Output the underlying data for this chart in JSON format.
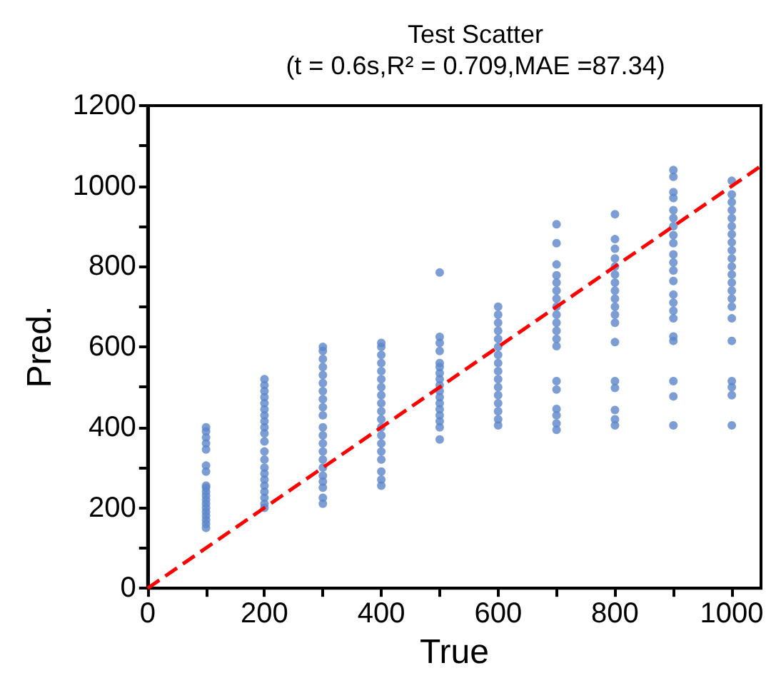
{
  "chart_data": {
    "type": "scatter",
    "title": "Test Scatter",
    "subtitle": "(t = 0.6s,R² = 0.709,MAE =87.34)",
    "xlabel": "True",
    "ylabel": "Pred.",
    "xlim": [
      0,
      1050
    ],
    "xticks": [
      0,
      {
        "value": 100,
        "label": null
      },
      200,
      {
        "value": 300,
        "label": null
      },
      400,
      {
        "value": 500,
        "label": null
      },
      600,
      {
        "value": 700,
        "label": null
      },
      800,
      {
        "value": 900,
        "label": null
      },
      1000
    ],
    "ylim": [
      0,
      1200
    ],
    "yticks": [
      0,
      {
        "value": 100,
        "label": null
      },
      200,
      {
        "value": 300,
        "label": null
      },
      400,
      {
        "value": 500,
        "label": null
      },
      600,
      {
        "value": 700,
        "label": null
      },
      800,
      {
        "value": 900,
        "label": null
      },
      1000,
      {
        "value": 1100,
        "label": null
      },
      1200
    ],
    "grid": false,
    "marker": "circle",
    "series": [
      {
        "color": "#5b86c9",
        "x": [
          100,
          100,
          100,
          100,
          100,
          100,
          100,
          100,
          100,
          100,
          100,
          100,
          100,
          100,
          100,
          100,
          100,
          100,
          100,
          200,
          200,
          200,
          200,
          200,
          200,
          200,
          200,
          200,
          200,
          200,
          200,
          200,
          200,
          200,
          200,
          200,
          200,
          200,
          200,
          200,
          300,
          300,
          300,
          300,
          300,
          300,
          300,
          300,
          300,
          300,
          300,
          300,
          300,
          300,
          300,
          300,
          300,
          300,
          300,
          300,
          300,
          400,
          400,
          400,
          400,
          400,
          400,
          400,
          400,
          400,
          400,
          400,
          400,
          400,
          400,
          400,
          400,
          400,
          400,
          400,
          500,
          500,
          500,
          500,
          500,
          500,
          500,
          500,
          500,
          500,
          500,
          500,
          500,
          500,
          500,
          500,
          500,
          600,
          600,
          600,
          600,
          600,
          600,
          600,
          600,
          600,
          600,
          600,
          600,
          600,
          600,
          600,
          600,
          700,
          700,
          700,
          700,
          700,
          700,
          700,
          700,
          700,
          700,
          700,
          700,
          700,
          700,
          700,
          700,
          700,
          700,
          700,
          800,
          800,
          800,
          800,
          800,
          800,
          800,
          800,
          800,
          800,
          800,
          800,
          800,
          800,
          800,
          800,
          800,
          800,
          900,
          900,
          900,
          900,
          900,
          900,
          900,
          900,
          900,
          900,
          900,
          900,
          900,
          900,
          900,
          900,
          900,
          900,
          900,
          900,
          900,
          900,
          1000,
          1000,
          1000,
          1000,
          1000,
          1000,
          1000,
          1000,
          1000,
          1000,
          1000,
          1000,
          1000,
          1000,
          1000,
          1000,
          1000,
          1000,
          1000,
          1000,
          1000,
          1000
        ],
        "values": [
          150,
          160,
          170,
          180,
          190,
          200,
          210,
          220,
          230,
          240,
          250,
          255,
          290,
          305,
          345,
          360,
          375,
          390,
          400,
          200,
          210,
          225,
          240,
          255,
          270,
          285,
          300,
          320,
          340,
          365,
          385,
          400,
          415,
          430,
          445,
          460,
          475,
          490,
          505,
          520,
          210,
          225,
          250,
          265,
          280,
          300,
          320,
          340,
          360,
          380,
          400,
          430,
          450,
          470,
          490,
          510,
          530,
          550,
          570,
          590,
          600,
          255,
          270,
          290,
          320,
          340,
          360,
          380,
          400,
          420,
          440,
          460,
          480,
          500,
          520,
          540,
          560,
          580,
          600,
          610,
          370,
          400,
          415,
          430,
          445,
          460,
          475,
          490,
          505,
          520,
          535,
          550,
          560,
          590,
          610,
          625,
          785,
          405,
          420,
          440,
          460,
          480,
          500,
          520,
          540,
          560,
          580,
          600,
          620,
          640,
          660,
          680,
          700,
          394,
          410,
          430,
          446,
          494,
          515,
          602,
          620,
          640,
          660,
          680,
          700,
          720,
          740,
          760,
          778,
          805,
          858,
          905,
          405,
          420,
          443,
          498,
          515,
          612,
          660,
          680,
          700,
          720,
          740,
          760,
          780,
          800,
          820,
          844,
          868,
          930,
          405,
          477,
          515,
          615,
          626,
          671,
          690,
          710,
          730,
          764,
          790,
          810,
          830,
          858,
          878,
          900,
          920,
          940,
          970,
          985,
          1023,
          1040,
          405,
          480,
          500,
          515,
          615,
          671,
          700,
          720,
          740,
          760,
          780,
          800,
          820,
          840,
          860,
          880,
          900,
          920,
          940,
          960,
          979,
          1013
        ]
      },
      {
        "type": "line",
        "color": "#ff0000",
        "line_style": "dashed",
        "marker": "none",
        "x": [
          0,
          1050
        ],
        "values": [
          0,
          1050
        ]
      }
    ]
  }
}
